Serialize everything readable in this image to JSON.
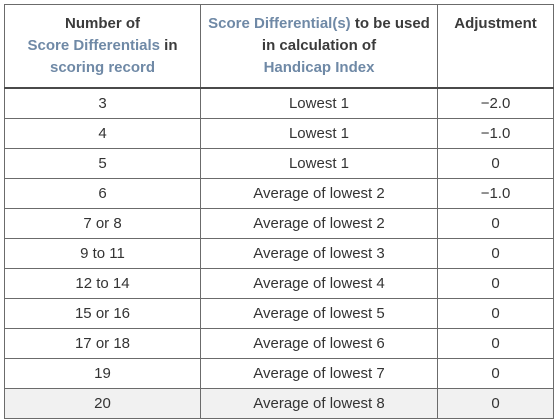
{
  "header": {
    "col1": {
      "line1": "Number of",
      "line2_hl": "Score Differentials",
      "line2_rest": " in",
      "line3_hl": "scoring record"
    },
    "col2": {
      "line1_hl": "Score Differential(s)",
      "line1_rest": " to be used",
      "line2": "in calculation of",
      "line3_hl": "Handicap Index"
    },
    "col3": {
      "label": "Adjustment"
    }
  },
  "rows": [
    {
      "count": "3",
      "calc": "Lowest 1",
      "adj": "−2.0"
    },
    {
      "count": "4",
      "calc": "Lowest 1",
      "adj": "−1.0"
    },
    {
      "count": "5",
      "calc": "Lowest 1",
      "adj": "0"
    },
    {
      "count": "6",
      "calc": "Average of lowest 2",
      "adj": "−1.0"
    },
    {
      "count": "7 or 8",
      "calc": "Average of lowest 2",
      "adj": "0"
    },
    {
      "count": "9 to 11",
      "calc": "Average of lowest 3",
      "adj": "0"
    },
    {
      "count": "12 to 14",
      "calc": "Average of lowest 4",
      "adj": "0"
    },
    {
      "count": "15 or 16",
      "calc": "Average of lowest 5",
      "adj": "0"
    },
    {
      "count": "17 or 18",
      "calc": "Average of lowest 6",
      "adj": "0"
    },
    {
      "count": "19",
      "calc": "Average of lowest 7",
      "adj": "0"
    },
    {
      "count": "20",
      "calc": "Average of lowest 8",
      "adj": "0"
    }
  ],
  "colors": {
    "highlight": "#6f89a6",
    "text": "#333333",
    "border": "#6b6b6b",
    "last_row_bg": "#f1f1f1"
  }
}
